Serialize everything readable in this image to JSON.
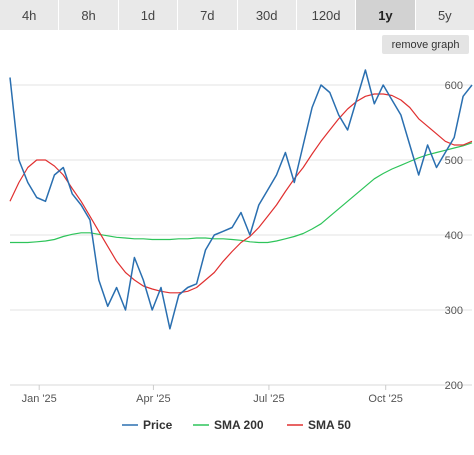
{
  "tabs": [
    {
      "label": "4h",
      "active": false
    },
    {
      "label": "8h",
      "active": false
    },
    {
      "label": "1d",
      "active": false
    },
    {
      "label": "7d",
      "active": false
    },
    {
      "label": "30d",
      "active": false
    },
    {
      "label": "120d",
      "active": false
    },
    {
      "label": "1y",
      "active": true
    },
    {
      "label": "5y",
      "active": false
    }
  ],
  "remove_graph_label": "remove graph",
  "chart_data": {
    "type": "line",
    "title": "",
    "xlabel": "",
    "ylabel": "",
    "ylim": [
      200,
      640
    ],
    "y_ticks": [
      "200",
      "300",
      "400",
      "500",
      "600"
    ],
    "x_ticks": [
      "Jan '25",
      "Apr '25",
      "Jul '25",
      "Oct '25"
    ],
    "grid": true,
    "legend_position": "bottom",
    "x": [
      "2024-12-09",
      "2024-12-16",
      "2024-12-23",
      "2024-12-30",
      "2025-01-06",
      "2025-01-13",
      "2025-01-20",
      "2025-01-27",
      "2025-02-03",
      "2025-02-10",
      "2025-02-17",
      "2025-02-24",
      "2025-03-03",
      "2025-03-10",
      "2025-03-17",
      "2025-03-24",
      "2025-03-31",
      "2025-04-07",
      "2025-04-14",
      "2025-04-21",
      "2025-04-28",
      "2025-05-05",
      "2025-05-12",
      "2025-05-19",
      "2025-05-26",
      "2025-06-02",
      "2025-06-09",
      "2025-06-16",
      "2025-06-23",
      "2025-06-30",
      "2025-07-07",
      "2025-07-14",
      "2025-07-21",
      "2025-07-28",
      "2025-08-04",
      "2025-08-11",
      "2025-08-18",
      "2025-08-25",
      "2025-09-01",
      "2025-09-08",
      "2025-09-15",
      "2025-09-22",
      "2025-09-29",
      "2025-10-06",
      "2025-10-13",
      "2025-10-20",
      "2025-10-27",
      "2025-11-03",
      "2025-11-10",
      "2025-11-17",
      "2025-11-24",
      "2025-12-01",
      "2025-12-08"
    ],
    "series": [
      {
        "name": "Price",
        "color": "#2a6fb0",
        "values": [
          610,
          500,
          470,
          450,
          445,
          480,
          490,
          455,
          440,
          420,
          340,
          305,
          330,
          300,
          370,
          340,
          300,
          330,
          275,
          320,
          330,
          335,
          380,
          400,
          405,
          410,
          430,
          400,
          440,
          460,
          480,
          510,
          470,
          520,
          570,
          600,
          590,
          560,
          540,
          580,
          620,
          575,
          600,
          580,
          560,
          520,
          480,
          520,
          490,
          510,
          530,
          585,
          600
        ]
      },
      {
        "name": "SMA 200",
        "color": "#2ec45a",
        "values": [
          390,
          390,
          390,
          391,
          392,
          394,
          398,
          401,
          403,
          403,
          401,
          399,
          397,
          396,
          395,
          395,
          394,
          394,
          394,
          395,
          395,
          396,
          396,
          395,
          395,
          394,
          393,
          391,
          390,
          390,
          392,
          395,
          398,
          402,
          408,
          415,
          425,
          435,
          445,
          455,
          465,
          475,
          482,
          488,
          493,
          498,
          503,
          507,
          510,
          513,
          516,
          519,
          523
        ]
      },
      {
        "name": "SMA 50",
        "color": "#e03030",
        "values": [
          445,
          470,
          490,
          500,
          500,
          492,
          480,
          462,
          445,
          425,
          405,
          385,
          365,
          350,
          340,
          332,
          328,
          325,
          323,
          323,
          325,
          330,
          340,
          350,
          365,
          378,
          390,
          398,
          410,
          425,
          440,
          458,
          475,
          490,
          508,
          525,
          540,
          555,
          568,
          578,
          585,
          588,
          588,
          586,
          580,
          570,
          555,
          545,
          535,
          525,
          520,
          520,
          525
        ]
      }
    ]
  }
}
